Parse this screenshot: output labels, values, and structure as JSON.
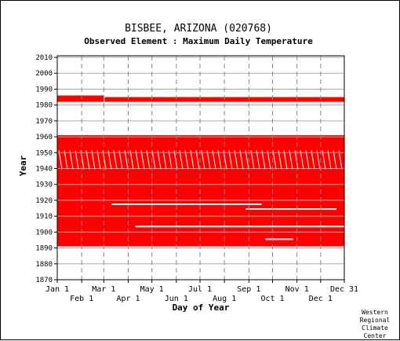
{
  "chart_data": {
    "type": "heatmap",
    "title": "BISBEE, ARIZONA   (020768)",
    "subtitle": "Observed Element : Maximum Daily Temperature",
    "xlabel": "Day of Year",
    "ylabel": "Year",
    "xlim": [
      1,
      365
    ],
    "ylim": [
      1870,
      2011
    ],
    "grid": true,
    "yticks": [
      1870,
      1880,
      1890,
      1900,
      1910,
      1920,
      1930,
      1940,
      1950,
      1960,
      1970,
      1980,
      1990,
      2000,
      2010
    ],
    "xticks_upper": [
      {
        "label": "Jan 1",
        "day": 1
      },
      {
        "label": "Mar 1",
        "day": 60
      },
      {
        "label": "May 1",
        "day": 121
      },
      {
        "label": "Jul 1",
        "day": 182
      },
      {
        "label": "Sep 1",
        "day": 244
      },
      {
        "label": "Nov 1",
        "day": 305
      },
      {
        "label": "Dec 31",
        "day": 365
      }
    ],
    "xticks_lower": [
      {
        "label": "Feb 1",
        "day": 32
      },
      {
        "label": "Apr 1",
        "day": 91
      },
      {
        "label": "Jun 1",
        "day": 152
      },
      {
        "label": "Aug 1",
        "day": 213
      },
      {
        "label": "Oct 1",
        "day": 274
      },
      {
        "label": "Dec 1",
        "day": 335
      }
    ],
    "data_color": "#ff0000",
    "data_blocks": [
      {
        "years": [
          1982,
          1985
        ],
        "days": [
          1,
          365
        ],
        "segments": [
          [
            1,
            60,
            1985
          ],
          [
            61,
            365,
            1984
          ]
        ]
      },
      {
        "years": [
          1891,
          1961
        ],
        "days": [
          1,
          365
        ]
      }
    ],
    "missing_rows": [
      {
        "year": 1945,
        "days": [
          1,
          365
        ],
        "pattern": "diagonal"
      },
      {
        "year": 1903,
        "days": [
          100,
          365
        ]
      },
      {
        "year": 1917,
        "days": [
          70,
          260
        ]
      },
      {
        "year": 1914,
        "days": [
          240,
          355
        ]
      },
      {
        "year": 1895,
        "days": [
          265,
          300
        ]
      }
    ],
    "credit": [
      "Western",
      "Regional",
      "Climate",
      "Center"
    ]
  }
}
